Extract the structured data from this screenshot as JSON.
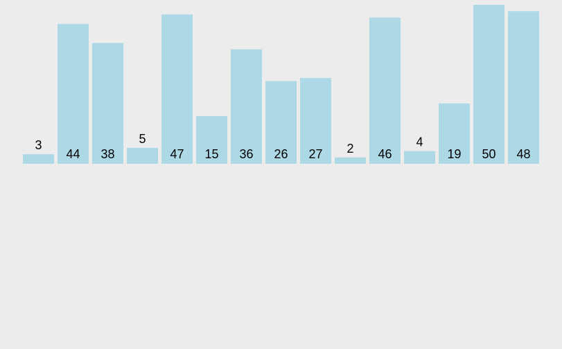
{
  "chart_data": {
    "type": "bar",
    "values": [
      3,
      44,
      38,
      5,
      47,
      15,
      36,
      26,
      27,
      2,
      46,
      4,
      19,
      50,
      48
    ],
    "ylim": [
      0,
      50
    ],
    "grid": false,
    "bar_color": "#add8e6",
    "background": "#ececec",
    "title": "",
    "xlabel": "",
    "ylabel": ""
  }
}
